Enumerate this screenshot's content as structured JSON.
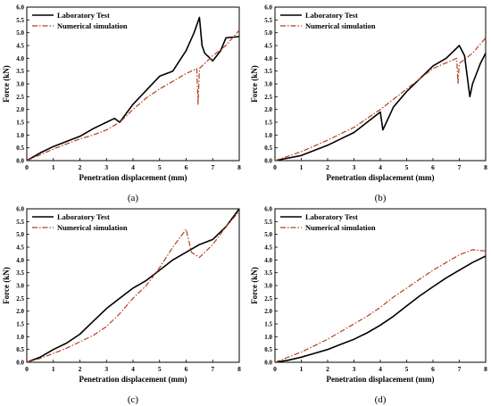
{
  "chart_data": [
    {
      "type": "line",
      "panel_label": "(a)",
      "xlabel": "Penetration displacement (mm)",
      "ylabel": "Force (kN)",
      "xlim": [
        0,
        8
      ],
      "ylim": [
        0,
        6.0
      ],
      "xticks": [
        "0",
        "1",
        "2",
        "3",
        "4",
        "5",
        "6",
        "7",
        "8"
      ],
      "yticks": [
        "0.0",
        "0.5",
        "1.0",
        "1.5",
        "2.0",
        "2.5",
        "3.0",
        "3.5",
        "4.0",
        "4.5",
        "5.0",
        "5.5",
        "6.0"
      ],
      "grid": false,
      "legend": "top-left",
      "series": [
        {
          "name": "Laboratory Test",
          "color": "#000000",
          "style": "solid",
          "x": [
            0,
            0.5,
            1.0,
            1.5,
            2.0,
            2.5,
            3.0,
            3.3,
            3.5,
            4.0,
            4.5,
            5.0,
            5.5,
            6.0,
            6.3,
            6.5,
            6.6,
            6.7,
            7.0,
            7.3,
            7.5,
            8.0
          ],
          "y": [
            0,
            0.3,
            0.55,
            0.75,
            0.95,
            1.25,
            1.5,
            1.65,
            1.5,
            2.2,
            2.75,
            3.3,
            3.5,
            4.3,
            5.0,
            5.6,
            4.5,
            4.2,
            3.9,
            4.3,
            4.8,
            4.85
          ]
        },
        {
          "name": "Numerical simulation",
          "color": "#b5401e",
          "style": "dashdot",
          "x": [
            0,
            1.0,
            2.0,
            2.5,
            3.0,
            3.5,
            4.0,
            4.5,
            5.0,
            5.5,
            6.0,
            6.4,
            6.45,
            6.5,
            7.0,
            7.5,
            8.0
          ],
          "y": [
            0,
            0.45,
            0.85,
            1.0,
            1.2,
            1.5,
            2.0,
            2.45,
            2.8,
            3.1,
            3.4,
            3.6,
            2.2,
            3.6,
            4.1,
            4.5,
            5.1
          ]
        }
      ]
    },
    {
      "type": "line",
      "panel_label": "(b)",
      "xlabel": "Penetration displacement (mm)",
      "ylabel": "Force (kN)",
      "xlim": [
        0,
        8
      ],
      "ylim": [
        0,
        6.0
      ],
      "xticks": [
        "0",
        "1",
        "2",
        "3",
        "4",
        "5",
        "6",
        "7",
        "8"
      ],
      "yticks": [
        "0.0",
        "0.5",
        "1.0",
        "1.5",
        "2.0",
        "2.5",
        "3.0",
        "3.5",
        "4.0",
        "4.5",
        "5.0",
        "5.5",
        "6.0"
      ],
      "grid": false,
      "legend": "top-left",
      "series": [
        {
          "name": "Laboratory Test",
          "color": "#000000",
          "style": "solid",
          "x": [
            0,
            1.0,
            2.0,
            3.0,
            3.5,
            4.0,
            4.1,
            4.5,
            5.0,
            5.5,
            6.0,
            6.5,
            7.0,
            7.2,
            7.4,
            7.5,
            7.8,
            8.0
          ],
          "y": [
            0,
            0.2,
            0.6,
            1.1,
            1.5,
            1.9,
            1.2,
            2.1,
            2.7,
            3.2,
            3.7,
            4.0,
            4.5,
            4.1,
            2.5,
            3.0,
            3.8,
            4.2
          ]
        },
        {
          "name": "Numerical simulation",
          "color": "#b5401e",
          "style": "dashdot",
          "x": [
            0,
            1.0,
            2.0,
            3.0,
            4.0,
            5.0,
            6.0,
            6.9,
            6.95,
            7.0,
            7.5,
            8.0
          ],
          "y": [
            0,
            0.35,
            0.8,
            1.3,
            2.0,
            2.8,
            3.6,
            4.0,
            3.0,
            3.8,
            4.2,
            4.8
          ]
        }
      ]
    },
    {
      "type": "line",
      "panel_label": "(c)",
      "xlabel": "Penetration displacement (mm)",
      "ylabel": "Force (kN)",
      "xlim": [
        0,
        8
      ],
      "ylim": [
        0,
        6.0
      ],
      "xticks": [
        "0",
        "1",
        "2",
        "3",
        "4",
        "5",
        "6",
        "7",
        "8"
      ],
      "yticks": [
        "0.0",
        "0.5",
        "1.0",
        "1.5",
        "2.0",
        "2.5",
        "3.0",
        "3.5",
        "4.0",
        "4.5",
        "5.0",
        "5.5",
        "6.0"
      ],
      "grid": false,
      "legend": "top-left",
      "series": [
        {
          "name": "Laboratory Test",
          "color": "#000000",
          "style": "solid",
          "x": [
            0,
            0.5,
            1.0,
            1.5,
            2.0,
            2.5,
            3.0,
            3.5,
            4.0,
            4.5,
            5.0,
            5.5,
            6.0,
            6.5,
            7.0,
            7.5,
            8.0
          ],
          "y": [
            0,
            0.2,
            0.5,
            0.75,
            1.1,
            1.6,
            2.1,
            2.5,
            2.9,
            3.2,
            3.6,
            4.0,
            4.3,
            4.6,
            4.8,
            5.3,
            6.0
          ]
        },
        {
          "name": "Numerical simulation",
          "color": "#b5401e",
          "style": "dashdot",
          "x": [
            0,
            0.5,
            1.0,
            1.5,
            2.0,
            2.5,
            3.0,
            3.5,
            4.0,
            4.5,
            5.0,
            5.5,
            6.0,
            6.2,
            6.5,
            7.0,
            7.5,
            8.0
          ],
          "y": [
            0,
            0.15,
            0.35,
            0.55,
            0.8,
            1.05,
            1.4,
            1.9,
            2.5,
            3.0,
            3.7,
            4.5,
            5.2,
            4.3,
            4.1,
            4.6,
            5.3,
            5.9
          ]
        }
      ]
    },
    {
      "type": "line",
      "panel_label": "(d)",
      "xlabel": "Penetration displacement (mm)",
      "ylabel": "Force (kN)",
      "xlim": [
        0,
        8
      ],
      "ylim": [
        0,
        6.0
      ],
      "xticks": [
        "0",
        "1",
        "2",
        "3",
        "4",
        "5",
        "6",
        "7",
        "8"
      ],
      "yticks": [
        "0.0",
        "0.5",
        "1.0",
        "1.5",
        "2.0",
        "2.5",
        "3.0",
        "3.5",
        "4.0",
        "4.5",
        "5.0",
        "5.5",
        "6.0"
      ],
      "grid": false,
      "legend": "top-left",
      "series": [
        {
          "name": "Laboratory Test",
          "color": "#000000",
          "style": "solid",
          "x": [
            0,
            0.5,
            1.0,
            1.5,
            2.0,
            2.5,
            3.0,
            3.5,
            4.0,
            4.5,
            5.0,
            5.5,
            6.0,
            6.5,
            7.0,
            7.5,
            8.0
          ],
          "y": [
            0,
            0.08,
            0.2,
            0.35,
            0.5,
            0.7,
            0.9,
            1.15,
            1.45,
            1.8,
            2.2,
            2.6,
            2.95,
            3.3,
            3.6,
            3.9,
            4.15
          ]
        },
        {
          "name": "Numerical simulation",
          "color": "#b5401e",
          "style": "dashdot",
          "x": [
            0,
            0.5,
            1.0,
            1.5,
            2.0,
            2.5,
            3.0,
            3.5,
            4.0,
            4.5,
            5.0,
            5.5,
            6.0,
            6.5,
            7.0,
            7.5,
            8.0
          ],
          "y": [
            0,
            0.2,
            0.4,
            0.65,
            0.9,
            1.2,
            1.5,
            1.8,
            2.15,
            2.55,
            2.9,
            3.25,
            3.6,
            3.9,
            4.2,
            4.4,
            4.35
          ]
        }
      ]
    }
  ]
}
